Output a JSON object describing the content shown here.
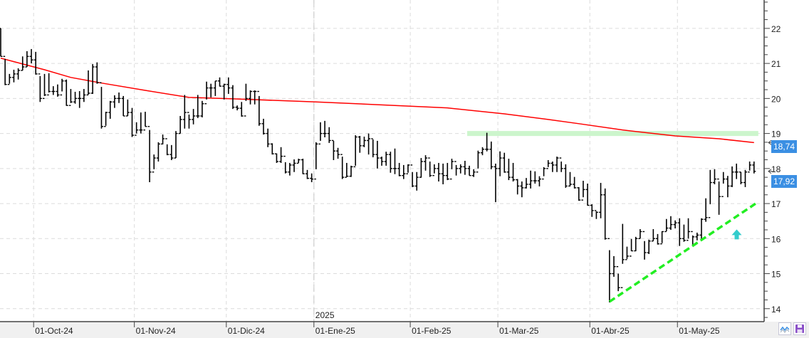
{
  "chart_data": {
    "type": "ohlc",
    "bar_fields": [
      "date",
      "high",
      "low",
      "close"
    ],
    "bars": [
      [
        "2024-09-19",
        22.0,
        21.2,
        21.2
      ],
      [
        "2024-09-20",
        21.13,
        20.38,
        20.4
      ],
      [
        "2024-09-23",
        20.7,
        20.42,
        20.6
      ],
      [
        "2024-09-24",
        20.82,
        20.46,
        20.7
      ],
      [
        "2024-09-25",
        20.86,
        20.54,
        20.8
      ],
      [
        "2024-09-26",
        21.2,
        20.8,
        20.9
      ],
      [
        "2024-09-27",
        21.35,
        20.9,
        21.2
      ],
      [
        "2024-09-30",
        21.41,
        21.0,
        21.1
      ],
      [
        "2024-10-01",
        21.33,
        20.68,
        20.7
      ],
      [
        "2024-10-02",
        20.64,
        19.9,
        20.0
      ],
      [
        "2024-10-03",
        20.7,
        20.07,
        20.1
      ],
      [
        "2024-10-04",
        20.72,
        20.17,
        20.2
      ],
      [
        "2024-10-07",
        20.35,
        20.1,
        20.2
      ],
      [
        "2024-10-08",
        20.4,
        20.05,
        20.1
      ],
      [
        "2024-10-09",
        20.56,
        20.2,
        20.5
      ],
      [
        "2024-10-10",
        20.54,
        19.79,
        19.8
      ],
      [
        "2024-10-11",
        20.27,
        19.87,
        19.9
      ],
      [
        "2024-10-14",
        20.19,
        19.85,
        20.0
      ],
      [
        "2024-10-15",
        20.21,
        19.73,
        20.0
      ],
      [
        "2024-10-16",
        20.27,
        19.9,
        20.1
      ],
      [
        "2024-10-17",
        20.8,
        20.11,
        20.15
      ],
      [
        "2024-10-18",
        20.98,
        20.13,
        20.9
      ],
      [
        "2024-10-21",
        21.03,
        20.42,
        20.45
      ],
      [
        "2024-10-22",
        20.33,
        19.14,
        19.2
      ],
      [
        "2024-10-23",
        19.62,
        19.22,
        19.6
      ],
      [
        "2024-10-24",
        19.93,
        19.42,
        19.9
      ],
      [
        "2024-10-25",
        20.09,
        19.73,
        20.0
      ],
      [
        "2024-10-28",
        20.17,
        19.87,
        20.0
      ],
      [
        "2024-10-29",
        20.07,
        19.5,
        19.5
      ],
      [
        "2024-10-30",
        19.97,
        19.5,
        19.6
      ],
      [
        "2024-10-31",
        19.73,
        18.9,
        18.95
      ],
      [
        "2024-11-01",
        19.32,
        19.0,
        19.1
      ],
      [
        "2024-11-04",
        19.6,
        19.0,
        19.1
      ],
      [
        "2024-11-05",
        19.62,
        19.2,
        19.2
      ],
      [
        "2024-11-06",
        19.1,
        17.61,
        17.9
      ],
      [
        "2024-11-07",
        18.4,
        17.98,
        18.3
      ],
      [
        "2024-11-08",
        18.75,
        18.2,
        18.7
      ],
      [
        "2024-11-11",
        18.97,
        18.69,
        18.85
      ],
      [
        "2024-11-12",
        18.69,
        18.38,
        18.4
      ],
      [
        "2024-11-13",
        18.67,
        18.24,
        18.3
      ],
      [
        "2024-11-14",
        19.07,
        18.3,
        19.0
      ],
      [
        "2024-11-15",
        19.5,
        19.0,
        19.4
      ],
      [
        "2024-11-18",
        20.1,
        19.14,
        19.6
      ],
      [
        "2024-11-19",
        19.54,
        19.14,
        19.4
      ],
      [
        "2024-11-20",
        19.7,
        19.26,
        19.5
      ],
      [
        "2024-11-21",
        20.1,
        19.44,
        19.5
      ],
      [
        "2024-11-22",
        19.93,
        19.46,
        19.85
      ],
      [
        "2024-11-25",
        20.48,
        19.97,
        20.3
      ],
      [
        "2024-11-26",
        20.42,
        20.03,
        20.3
      ],
      [
        "2024-11-27",
        20.5,
        20.07,
        20.5
      ],
      [
        "2024-11-28",
        20.6,
        20.34,
        20.35
      ],
      [
        "2024-11-29",
        20.42,
        19.97,
        20.4
      ],
      [
        "2024-12-02",
        20.6,
        20.13,
        20.3
      ],
      [
        "2024-12-03",
        20.38,
        19.7,
        19.75
      ],
      [
        "2024-12-04",
        19.8,
        19.66,
        19.72
      ],
      [
        "2024-12-05",
        19.9,
        19.48,
        19.5
      ],
      [
        "2024-12-06",
        20.42,
        19.93,
        20.0
      ],
      [
        "2024-12-09",
        20.23,
        19.83,
        20.2
      ],
      [
        "2024-12-10",
        20.23,
        19.83,
        20.2
      ],
      [
        "2024-12-11",
        20.07,
        19.22,
        19.28
      ],
      [
        "2024-12-12",
        19.42,
        18.97,
        19.0
      ],
      [
        "2024-12-13",
        19.14,
        18.61,
        18.7
      ],
      [
        "2024-12-16",
        18.72,
        18.4,
        18.42
      ],
      [
        "2024-12-17",
        18.43,
        18.16,
        18.2
      ],
      [
        "2024-12-18",
        18.61,
        18.16,
        18.35
      ],
      [
        "2024-12-19",
        18.18,
        17.86,
        17.9
      ],
      [
        "2024-12-20",
        18.16,
        17.8,
        18.1
      ],
      [
        "2024-12-23",
        18.26,
        17.9,
        18.15
      ],
      [
        "2024-12-24",
        18.28,
        18.16,
        18.25
      ],
      [
        "2024-12-27",
        18.28,
        17.84,
        17.85
      ],
      [
        "2024-12-30",
        17.96,
        17.7,
        17.72
      ],
      [
        "2024-12-31",
        17.86,
        17.61,
        17.7
      ],
      [
        "2025-01-02",
        18.75,
        17.98,
        18.7
      ],
      [
        "2025-01-03",
        19.32,
        18.79,
        19.0
      ],
      [
        "2025-01-06",
        19.36,
        18.89,
        19.0
      ],
      [
        "2025-01-07",
        19.18,
        18.73,
        18.8
      ],
      [
        "2025-01-08",
        18.79,
        18.24,
        18.5
      ],
      [
        "2025-01-09",
        18.59,
        18.28,
        18.4
      ],
      [
        "2025-01-10",
        18.34,
        17.7,
        17.75
      ],
      [
        "2025-01-13",
        18.16,
        17.76,
        17.78
      ],
      [
        "2025-01-14",
        18.08,
        17.76,
        18.05
      ],
      [
        "2025-01-15",
        18.95,
        18.08,
        18.9
      ],
      [
        "2025-01-16",
        18.93,
        18.45,
        18.65
      ],
      [
        "2025-01-17",
        18.91,
        18.61,
        18.8
      ],
      [
        "2025-01-20",
        19.0,
        18.4,
        18.85
      ],
      [
        "2025-01-21",
        18.83,
        18.32,
        18.4
      ],
      [
        "2025-01-22",
        18.79,
        18.0,
        18.3
      ],
      [
        "2025-01-23",
        18.34,
        18.08,
        18.2
      ],
      [
        "2025-01-24",
        18.48,
        18.08,
        18.4
      ],
      [
        "2025-01-27",
        18.48,
        17.88,
        18.0
      ],
      [
        "2025-01-28",
        18.57,
        17.84,
        18.0
      ],
      [
        "2025-01-29",
        18.16,
        17.78,
        17.8
      ],
      [
        "2025-01-30",
        18.1,
        17.7,
        17.85
      ],
      [
        "2025-01-31",
        18.12,
        17.88,
        18.1
      ],
      [
        "2025-02-03",
        17.9,
        17.47,
        17.5
      ],
      [
        "2025-02-04",
        17.9,
        17.37,
        17.75
      ],
      [
        "2025-02-05",
        18.3,
        17.74,
        18.2
      ],
      [
        "2025-02-06",
        18.38,
        17.94,
        18.3
      ],
      [
        "2025-02-07",
        18.2,
        17.76,
        17.8
      ],
      [
        "2025-02-10",
        18.12,
        17.86,
        18.0
      ],
      [
        "2025-02-11",
        18.16,
        17.63,
        17.85
      ],
      [
        "2025-02-12",
        18.14,
        17.55,
        17.8
      ],
      [
        "2025-02-13",
        18.16,
        17.67,
        17.7
      ],
      [
        "2025-02-14",
        18.28,
        17.98,
        18.2
      ],
      [
        "2025-02-17",
        18.1,
        17.8,
        18.0
      ],
      [
        "2025-02-18",
        18.12,
        17.86,
        18.05
      ],
      [
        "2025-02-19",
        18.22,
        17.82,
        18.0
      ],
      [
        "2025-02-20",
        18.08,
        17.8,
        17.8
      ],
      [
        "2025-02-21",
        17.98,
        17.76,
        17.9
      ],
      [
        "2025-02-24",
        18.51,
        18.0,
        18.45
      ],
      [
        "2025-02-25",
        18.61,
        18.38,
        18.55
      ],
      [
        "2025-02-26",
        19.02,
        18.49,
        18.55
      ],
      [
        "2025-02-27",
        18.77,
        17.98,
        18.05
      ],
      [
        "2025-02-28",
        18.14,
        17.04,
        18.0
      ],
      [
        "2025-03-03",
        18.49,
        17.78,
        18.3
      ],
      [
        "2025-03-04",
        18.45,
        17.88,
        17.9
      ],
      [
        "2025-03-05",
        18.28,
        17.67,
        17.75
      ],
      [
        "2025-03-06",
        18.16,
        17.63,
        17.68
      ],
      [
        "2025-03-07",
        17.7,
        17.26,
        17.5
      ],
      [
        "2025-03-10",
        17.63,
        17.18,
        17.45
      ],
      [
        "2025-03-11",
        17.73,
        17.43,
        17.55
      ],
      [
        "2025-03-12",
        17.94,
        17.43,
        17.65
      ],
      [
        "2025-03-13",
        17.92,
        17.57,
        17.65
      ],
      [
        "2025-03-14",
        17.78,
        17.49,
        17.7
      ],
      [
        "2025-03-17",
        18.04,
        17.78,
        18.0
      ],
      [
        "2025-03-18",
        18.24,
        18.04,
        18.15
      ],
      [
        "2025-03-19",
        18.2,
        17.9,
        18.1
      ],
      [
        "2025-03-20",
        18.34,
        17.9,
        18.3
      ],
      [
        "2025-03-21",
        18.2,
        17.9,
        18.0
      ],
      [
        "2025-03-24",
        18.12,
        17.45,
        17.5
      ],
      [
        "2025-03-25",
        17.9,
        17.49,
        17.55
      ],
      [
        "2025-03-26",
        17.76,
        17.43,
        17.45
      ],
      [
        "2025-03-27",
        17.47,
        17.08,
        17.1
      ],
      [
        "2025-03-28",
        17.65,
        17.18,
        17.4
      ],
      [
        "2025-03-31",
        17.57,
        16.94,
        16.95
      ],
      [
        "2025-04-01",
        16.98,
        16.62,
        16.8
      ],
      [
        "2025-04-02",
        16.78,
        16.56,
        16.75
      ],
      [
        "2025-04-03",
        17.59,
        16.58,
        17.25
      ],
      [
        "2025-04-04",
        17.43,
        15.97,
        16.0
      ],
      [
        "2025-04-07",
        15.67,
        14.18,
        15.0
      ],
      [
        "2025-04-08",
        15.5,
        14.91,
        15.2
      ],
      [
        "2025-04-09",
        15.0,
        14.5,
        14.6
      ],
      [
        "2025-04-10",
        16.42,
        15.28,
        15.4
      ],
      [
        "2025-04-11",
        15.77,
        15.42,
        15.5
      ],
      [
        "2025-04-14",
        15.99,
        15.64,
        15.65
      ],
      [
        "2025-04-15",
        16.05,
        15.64,
        16.0
      ],
      [
        "2025-04-16",
        16.27,
        16.0,
        16.2
      ],
      [
        "2025-04-17",
        15.93,
        15.4,
        15.6
      ],
      [
        "2025-04-22",
        15.97,
        15.56,
        15.93
      ],
      [
        "2025-04-23",
        16.27,
        15.93,
        16.0
      ],
      [
        "2025-04-24",
        16.13,
        15.83,
        15.85
      ],
      [
        "2025-04-25",
        16.21,
        15.87,
        16.2
      ],
      [
        "2025-04-28",
        16.56,
        16.21,
        16.3
      ],
      [
        "2025-04-29",
        16.64,
        16.25,
        16.4
      ],
      [
        "2025-04-30",
        16.52,
        16.29,
        16.45
      ],
      [
        "2025-05-02",
        16.58,
        15.79,
        16.0
      ],
      [
        "2025-05-05",
        16.4,
        15.91,
        15.95
      ],
      [
        "2025-05-06",
        16.58,
        16.0,
        16.2
      ],
      [
        "2025-05-07",
        16.09,
        15.83,
        16.05
      ],
      [
        "2025-05-08",
        16.17,
        15.95,
        16.1
      ],
      [
        "2025-05-09",
        16.58,
        15.99,
        16.55
      ],
      [
        "2025-05-12",
        17.15,
        16.48,
        16.6
      ],
      [
        "2025-05-13",
        17.96,
        16.98,
        17.6
      ],
      [
        "2025-05-14",
        17.98,
        17.55,
        17.7
      ],
      [
        "2025-05-15",
        17.63,
        16.68,
        17.2
      ],
      [
        "2025-05-16",
        17.9,
        17.57,
        17.7
      ],
      [
        "2025-05-19",
        17.79,
        17.18,
        17.5
      ],
      [
        "2025-05-20",
        18.06,
        17.47,
        17.9
      ],
      [
        "2025-05-21",
        18.14,
        17.7,
        17.9
      ],
      [
        "2025-05-22",
        17.9,
        17.55,
        17.6
      ],
      [
        "2025-05-23",
        17.96,
        17.47,
        17.9
      ],
      [
        "2025-05-26",
        18.2,
        17.94,
        18.1
      ],
      [
        "2025-05-27",
        18.2,
        17.86,
        17.92
      ]
    ],
    "moving_average": {
      "color": "#ff0000",
      "points": [
        [
          "2024-09-19",
          21.15
        ],
        [
          "2024-10-03",
          20.82
        ],
        [
          "2024-10-11",
          20.6
        ],
        [
          "2024-10-22",
          20.44
        ],
        [
          "2024-11-05",
          20.23
        ],
        [
          "2024-11-19",
          20.03
        ],
        [
          "2024-12-03",
          19.99
        ],
        [
          "2025-01-02",
          19.9
        ],
        [
          "2025-01-28",
          19.8
        ],
        [
          "2025-02-13",
          19.73
        ],
        [
          "2025-03-04",
          19.56
        ],
        [
          "2025-03-18",
          19.4
        ],
        [
          "2025-03-27",
          19.28
        ],
        [
          "2025-04-10",
          19.1
        ],
        [
          "2025-04-30",
          18.93
        ],
        [
          "2025-05-15",
          18.85
        ],
        [
          "2025-05-27",
          18.74
        ]
      ]
    },
    "resistance_band": {
      "price": 19.0,
      "from": "2025-02-20",
      "to": "2025-05-27",
      "color": "#ccf5cc"
    },
    "trendline": {
      "from": [
        "2025-04-07",
        14.2
      ],
      "to": [
        "2025-05-27",
        17.05
      ],
      "color": "#22ee22",
      "style": "dashed"
    },
    "signal_arrow": {
      "date": "2025-05-23",
      "price": 16.1,
      "direction": "up",
      "color": "#33cccc"
    },
    "ylim": [
      13.63,
      22.81
    ],
    "y_ticks": [
      "14",
      "15",
      "16",
      "17",
      "18",
      "19",
      "20",
      "21",
      "22"
    ],
    "x_ticks": [
      {
        "date": "2024-10-01",
        "label": "01-Oct-24"
      },
      {
        "date": "2024-11-01",
        "label": "01-Nov-24"
      },
      {
        "date": "2024-12-01",
        "label": "01-Dic-24"
      },
      {
        "date": "2025-01-01",
        "label": "01-Ene-25"
      },
      {
        "date": "2025-02-01",
        "label": "01-Feb-25"
      },
      {
        "date": "2025-03-01",
        "label": "01-Mar-25"
      },
      {
        "date": "2025-04-01",
        "label": "01-Abr-25"
      },
      {
        "date": "2025-05-01",
        "label": "01-May-25"
      }
    ],
    "year_marker": {
      "date": "2025-01-01",
      "label": "2025"
    },
    "price_labels": [
      {
        "value": 18.74,
        "text": "18,74",
        "color": "#3b8fe3"
      },
      {
        "value": 17.92,
        "text": "17,92",
        "color": "#3b8fe3"
      }
    ],
    "grid": true,
    "bar_color": "#000000"
  },
  "toolbar": {
    "icons": [
      "chart-style-icon",
      "save-icon"
    ]
  }
}
